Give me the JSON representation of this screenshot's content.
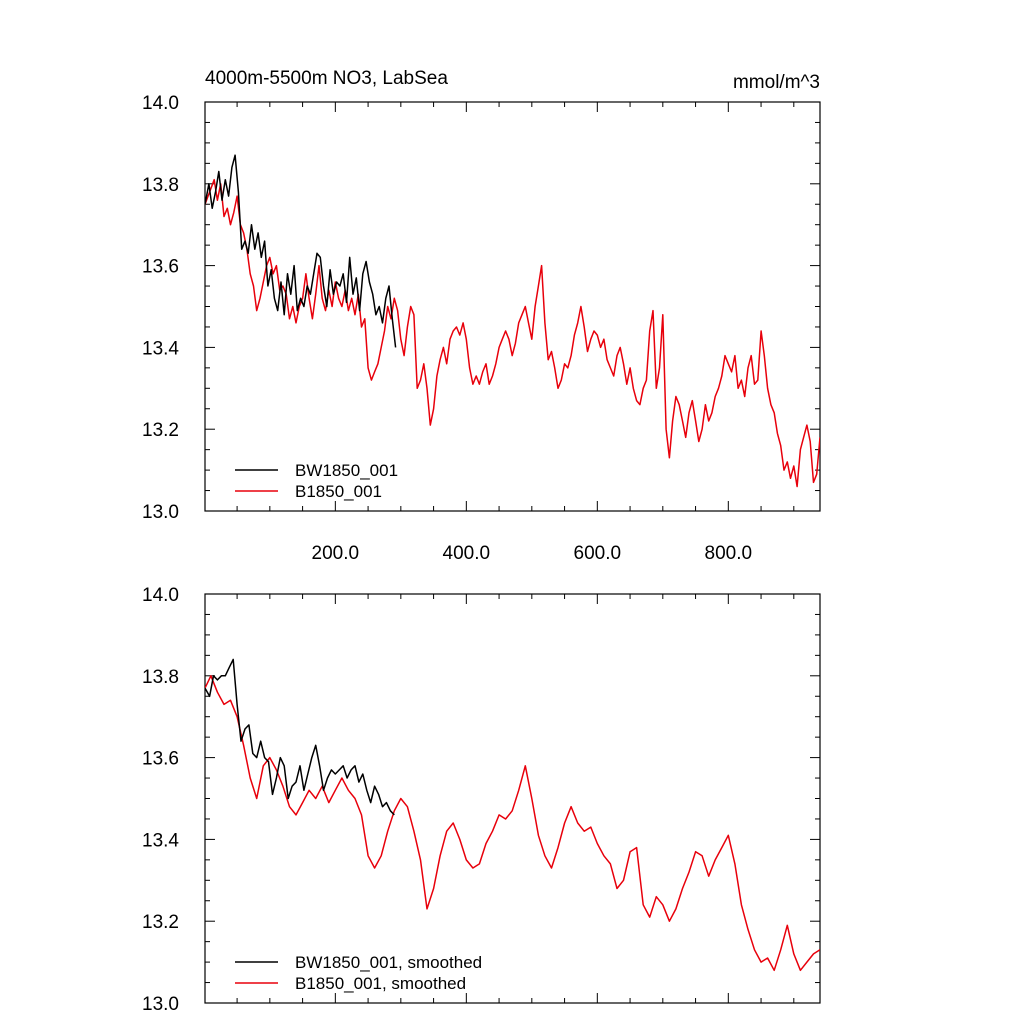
{
  "figure": {
    "title_left": "4000m-5500m NO3, LabSea",
    "title_right": "mmol/m^3",
    "colors": {
      "bw": "#000000",
      "b": "#e8000b",
      "axis": "#000000"
    }
  },
  "chart_data": [
    {
      "type": "line",
      "title": "4000m-5500m NO3, LabSea",
      "units": "mmol/m^3",
      "xlim": [
        1,
        940
      ],
      "ylim": [
        13.0,
        14.0
      ],
      "x_ticks": [
        200,
        400,
        600,
        800
      ],
      "x_tick_labels": [
        "200.0",
        "400.0",
        "600.0",
        "800.0"
      ],
      "y_ticks": [
        13.0,
        13.2,
        13.4,
        13.6,
        13.8,
        14.0
      ],
      "y_tick_labels": [
        "13.0",
        "13.2",
        "13.4",
        "13.6",
        "13.8",
        "14.0"
      ],
      "grid": false,
      "legend_position": "bottom-left",
      "series": [
        {
          "name": "BW1850_001",
          "color": "#000000",
          "x": [
            1,
            7,
            12,
            17,
            22,
            27,
            32,
            37,
            42,
            47,
            52,
            57,
            62,
            67,
            72,
            77,
            82,
            87,
            92,
            97,
            102,
            107,
            112,
            117,
            122,
            127,
            132,
            137,
            142,
            147,
            152,
            157,
            162,
            167,
            172,
            177,
            182,
            187,
            192,
            197,
            202,
            207,
            212,
            217,
            222,
            227,
            232,
            237,
            242,
            247,
            252,
            257,
            262,
            267,
            272,
            277,
            282,
            287,
            292
          ],
          "values": [
            13.75,
            13.8,
            13.74,
            13.78,
            13.83,
            13.76,
            13.81,
            13.77,
            13.84,
            13.87,
            13.78,
            13.64,
            13.66,
            13.63,
            13.7,
            13.64,
            13.68,
            13.62,
            13.66,
            13.55,
            13.59,
            13.52,
            13.49,
            13.56,
            13.48,
            13.58,
            13.53,
            13.6,
            13.49,
            13.52,
            13.5,
            13.55,
            13.53,
            13.58,
            13.63,
            13.62,
            13.55,
            13.5,
            13.59,
            13.53,
            13.56,
            13.55,
            13.58,
            13.51,
            13.62,
            13.53,
            13.57,
            13.49,
            13.58,
            13.61,
            13.56,
            13.53,
            13.48,
            13.5,
            13.46,
            13.52,
            13.55,
            13.47,
            13.4
          ]
        },
        {
          "name": "B1850_001",
          "color": "#e8000b",
          "x": [
            1,
            8,
            15,
            20,
            25,
            30,
            35,
            40,
            45,
            50,
            55,
            60,
            65,
            70,
            75,
            80,
            85,
            90,
            95,
            100,
            105,
            110,
            115,
            120,
            125,
            130,
            135,
            140,
            145,
            150,
            155,
            160,
            165,
            170,
            175,
            180,
            185,
            190,
            195,
            200,
            205,
            210,
            215,
            220,
            225,
            230,
            235,
            240,
            245,
            250,
            255,
            260,
            265,
            270,
            275,
            280,
            285,
            290,
            295,
            300,
            305,
            310,
            315,
            320,
            325,
            330,
            335,
            340,
            345,
            350,
            355,
            360,
            365,
            370,
            375,
            380,
            385,
            390,
            395,
            400,
            405,
            410,
            415,
            420,
            425,
            430,
            435,
            440,
            445,
            450,
            455,
            460,
            465,
            470,
            475,
            480,
            485,
            490,
            495,
            500,
            505,
            510,
            515,
            520,
            525,
            530,
            535,
            540,
            545,
            550,
            555,
            560,
            565,
            570,
            575,
            580,
            585,
            590,
            595,
            600,
            605,
            610,
            615,
            620,
            625,
            630,
            635,
            640,
            645,
            650,
            655,
            660,
            665,
            670,
            675,
            680,
            685,
            690,
            695,
            700,
            705,
            710,
            715,
            720,
            725,
            730,
            735,
            740,
            745,
            750,
            755,
            760,
            765,
            770,
            775,
            780,
            785,
            790,
            795,
            800,
            805,
            810,
            815,
            820,
            825,
            830,
            835,
            840,
            845,
            850,
            855,
            860,
            865,
            870,
            875,
            880,
            885,
            890,
            895,
            900,
            905,
            910,
            915,
            920,
            925,
            930,
            935,
            940
          ],
          "values": [
            13.75,
            13.78,
            13.81,
            13.76,
            13.8,
            13.72,
            13.74,
            13.7,
            13.73,
            13.77,
            13.7,
            13.68,
            13.64,
            13.58,
            13.55,
            13.49,
            13.52,
            13.56,
            13.6,
            13.62,
            13.58,
            13.6,
            13.54,
            13.55,
            13.53,
            13.47,
            13.5,
            13.46,
            13.5,
            13.52,
            13.58,
            13.52,
            13.47,
            13.53,
            13.6,
            13.52,
            13.49,
            13.54,
            13.5,
            13.56,
            13.52,
            13.5,
            13.54,
            13.49,
            13.52,
            13.48,
            13.53,
            13.45,
            13.47,
            13.35,
            13.32,
            13.34,
            13.36,
            13.4,
            13.44,
            13.5,
            13.47,
            13.52,
            13.49,
            13.42,
            13.38,
            13.45,
            13.5,
            13.48,
            13.3,
            13.32,
            13.36,
            13.3,
            13.21,
            13.25,
            13.33,
            13.37,
            13.4,
            13.36,
            13.42,
            13.44,
            13.45,
            13.43,
            13.46,
            13.42,
            13.35,
            13.31,
            13.33,
            13.31,
            13.34,
            13.36,
            13.31,
            13.33,
            13.36,
            13.4,
            13.42,
            13.44,
            13.42,
            13.38,
            13.41,
            13.46,
            13.48,
            13.5,
            13.46,
            13.42,
            13.5,
            13.55,
            13.6,
            13.46,
            13.37,
            13.39,
            13.35,
            13.3,
            13.32,
            13.36,
            13.35,
            13.38,
            13.43,
            13.46,
            13.5,
            13.45,
            13.39,
            13.42,
            13.44,
            13.43,
            13.4,
            13.42,
            13.37,
            13.35,
            13.33,
            13.38,
            13.4,
            13.36,
            13.31,
            13.35,
            13.3,
            13.27,
            13.26,
            13.3,
            13.32,
            13.44,
            13.49,
            13.3,
            13.35,
            13.48,
            13.2,
            13.13,
            13.22,
            13.28,
            13.26,
            13.22,
            13.18,
            13.24,
            13.27,
            13.22,
            13.17,
            13.2,
            13.26,
            13.22,
            13.24,
            13.28,
            13.3,
            13.33,
            13.38,
            13.36,
            13.34,
            13.38,
            13.3,
            13.32,
            13.28,
            13.35,
            13.38,
            13.31,
            13.32,
            13.44,
            13.38,
            13.3,
            13.26,
            13.24,
            13.19,
            13.16,
            13.1,
            13.12,
            13.08,
            13.11,
            13.06,
            13.15,
            13.18,
            13.21,
            13.17,
            13.07,
            13.09,
            13.18
          ]
        }
      ],
      "legend": [
        "BW1850_001",
        "B1850_001"
      ]
    },
    {
      "type": "line",
      "xlim": [
        1,
        940
      ],
      "ylim": [
        13.0,
        14.0
      ],
      "y_ticks": [
        13.0,
        13.2,
        13.4,
        13.6,
        13.8,
        14.0
      ],
      "y_tick_labels": [
        "13.0",
        "13.2",
        "13.4",
        "13.6",
        "13.8",
        "14.0"
      ],
      "grid": false,
      "legend_position": "bottom-left",
      "series": [
        {
          "name": "BW1850_001, smoothed",
          "color": "#000000",
          "x": [
            1,
            8,
            14,
            20,
            26,
            32,
            38,
            44,
            50,
            56,
            62,
            68,
            74,
            80,
            86,
            92,
            98,
            104,
            110,
            116,
            122,
            128,
            134,
            140,
            146,
            152,
            158,
            164,
            170,
            176,
            182,
            188,
            194,
            200,
            206,
            212,
            218,
            224,
            230,
            236,
            242,
            248,
            254,
            260,
            266,
            272,
            278,
            284,
            290
          ],
          "values": [
            13.77,
            13.75,
            13.8,
            13.79,
            13.8,
            13.8,
            13.82,
            13.84,
            13.73,
            13.64,
            13.67,
            13.68,
            13.61,
            13.6,
            13.64,
            13.6,
            13.59,
            13.51,
            13.55,
            13.6,
            13.58,
            13.5,
            13.53,
            13.54,
            13.58,
            13.52,
            13.56,
            13.6,
            13.63,
            13.58,
            13.52,
            13.55,
            13.57,
            13.56,
            13.57,
            13.58,
            13.55,
            13.57,
            13.58,
            13.54,
            13.56,
            13.52,
            13.49,
            13.53,
            13.51,
            13.48,
            13.49,
            13.47,
            13.46
          ]
        },
        {
          "name": "B1850_001, smoothed",
          "color": "#e8000b",
          "x": [
            1,
            10,
            20,
            30,
            40,
            50,
            60,
            70,
            80,
            90,
            100,
            110,
            120,
            130,
            140,
            150,
            160,
            170,
            180,
            190,
            200,
            210,
            220,
            230,
            240,
            250,
            260,
            270,
            280,
            290,
            300,
            310,
            320,
            330,
            340,
            350,
            360,
            370,
            380,
            390,
            400,
            410,
            420,
            430,
            440,
            450,
            460,
            470,
            480,
            490,
            500,
            510,
            520,
            530,
            540,
            550,
            560,
            570,
            580,
            590,
            600,
            610,
            620,
            630,
            640,
            650,
            660,
            670,
            680,
            690,
            700,
            710,
            720,
            730,
            740,
            750,
            760,
            770,
            780,
            790,
            800,
            810,
            820,
            830,
            840,
            850,
            860,
            870,
            880,
            890,
            900,
            910,
            920,
            930,
            940
          ],
          "values": [
            13.77,
            13.8,
            13.76,
            13.73,
            13.74,
            13.7,
            13.63,
            13.55,
            13.5,
            13.58,
            13.6,
            13.57,
            13.53,
            13.48,
            13.46,
            13.49,
            13.52,
            13.5,
            13.53,
            13.49,
            13.52,
            13.55,
            13.52,
            13.5,
            13.46,
            13.36,
            13.33,
            13.36,
            13.42,
            13.47,
            13.5,
            13.48,
            13.42,
            13.35,
            13.23,
            13.28,
            13.36,
            13.42,
            13.44,
            13.4,
            13.35,
            13.33,
            13.34,
            13.39,
            13.42,
            13.46,
            13.45,
            13.47,
            13.52,
            13.58,
            13.5,
            13.41,
            13.36,
            13.33,
            13.38,
            13.44,
            13.48,
            13.44,
            13.42,
            13.43,
            13.39,
            13.36,
            13.34,
            13.28,
            13.3,
            13.37,
            13.38,
            13.24,
            13.21,
            13.26,
            13.24,
            13.2,
            13.23,
            13.28,
            13.32,
            13.37,
            13.36,
            13.31,
            13.35,
            13.38,
            13.41,
            13.34,
            13.24,
            13.18,
            13.13,
            13.1,
            13.11,
            13.08,
            13.13,
            13.19,
            13.12,
            13.08,
            13.1,
            13.12,
            13.13
          ]
        }
      ],
      "legend": [
        "BW1850_001, smoothed",
        "B1850_001, smoothed"
      ]
    }
  ]
}
